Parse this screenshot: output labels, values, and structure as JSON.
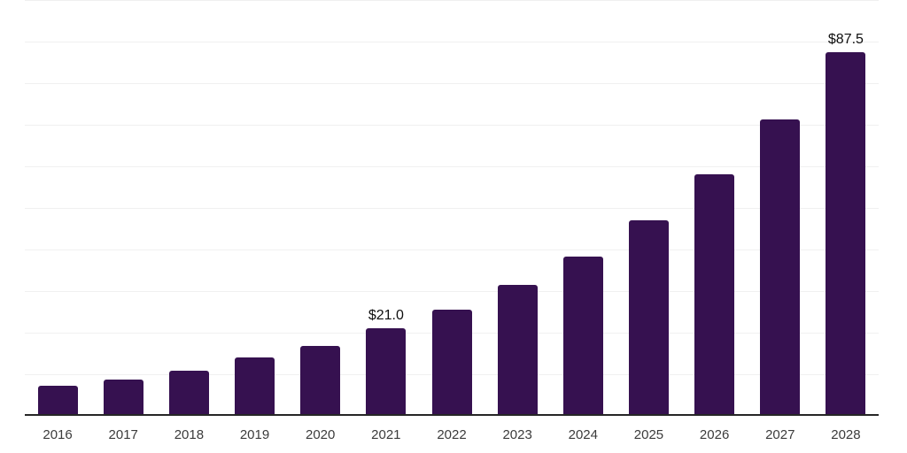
{
  "chart_data": {
    "type": "bar",
    "title": "",
    "xlabel": "",
    "ylabel": "",
    "categories": [
      "2016",
      "2017",
      "2018",
      "2019",
      "2020",
      "2021",
      "2022",
      "2023",
      "2024",
      "2025",
      "2026",
      "2027",
      "2028"
    ],
    "values": [
      7.3,
      8.7,
      10.9,
      14.0,
      16.9,
      21.0,
      25.5,
      31.5,
      38.3,
      47.0,
      58.1,
      71.3,
      87.5
    ],
    "data_labels": [
      {
        "category": "2021",
        "text": "$21.0"
      },
      {
        "category": "2028",
        "text": "$87.5"
      }
    ],
    "ylim": [
      0,
      100
    ],
    "grid_step": 10,
    "grid": "horizontal-only",
    "y_tick_labels_visible": false,
    "legend": "none",
    "colors": {
      "bar": "#361150",
      "gridline": "#f0f0f0",
      "axis_line": "#262626",
      "tick_label": "#3b3b3b",
      "value_label": "#0e0e0e",
      "background": "#ffffff"
    }
  }
}
